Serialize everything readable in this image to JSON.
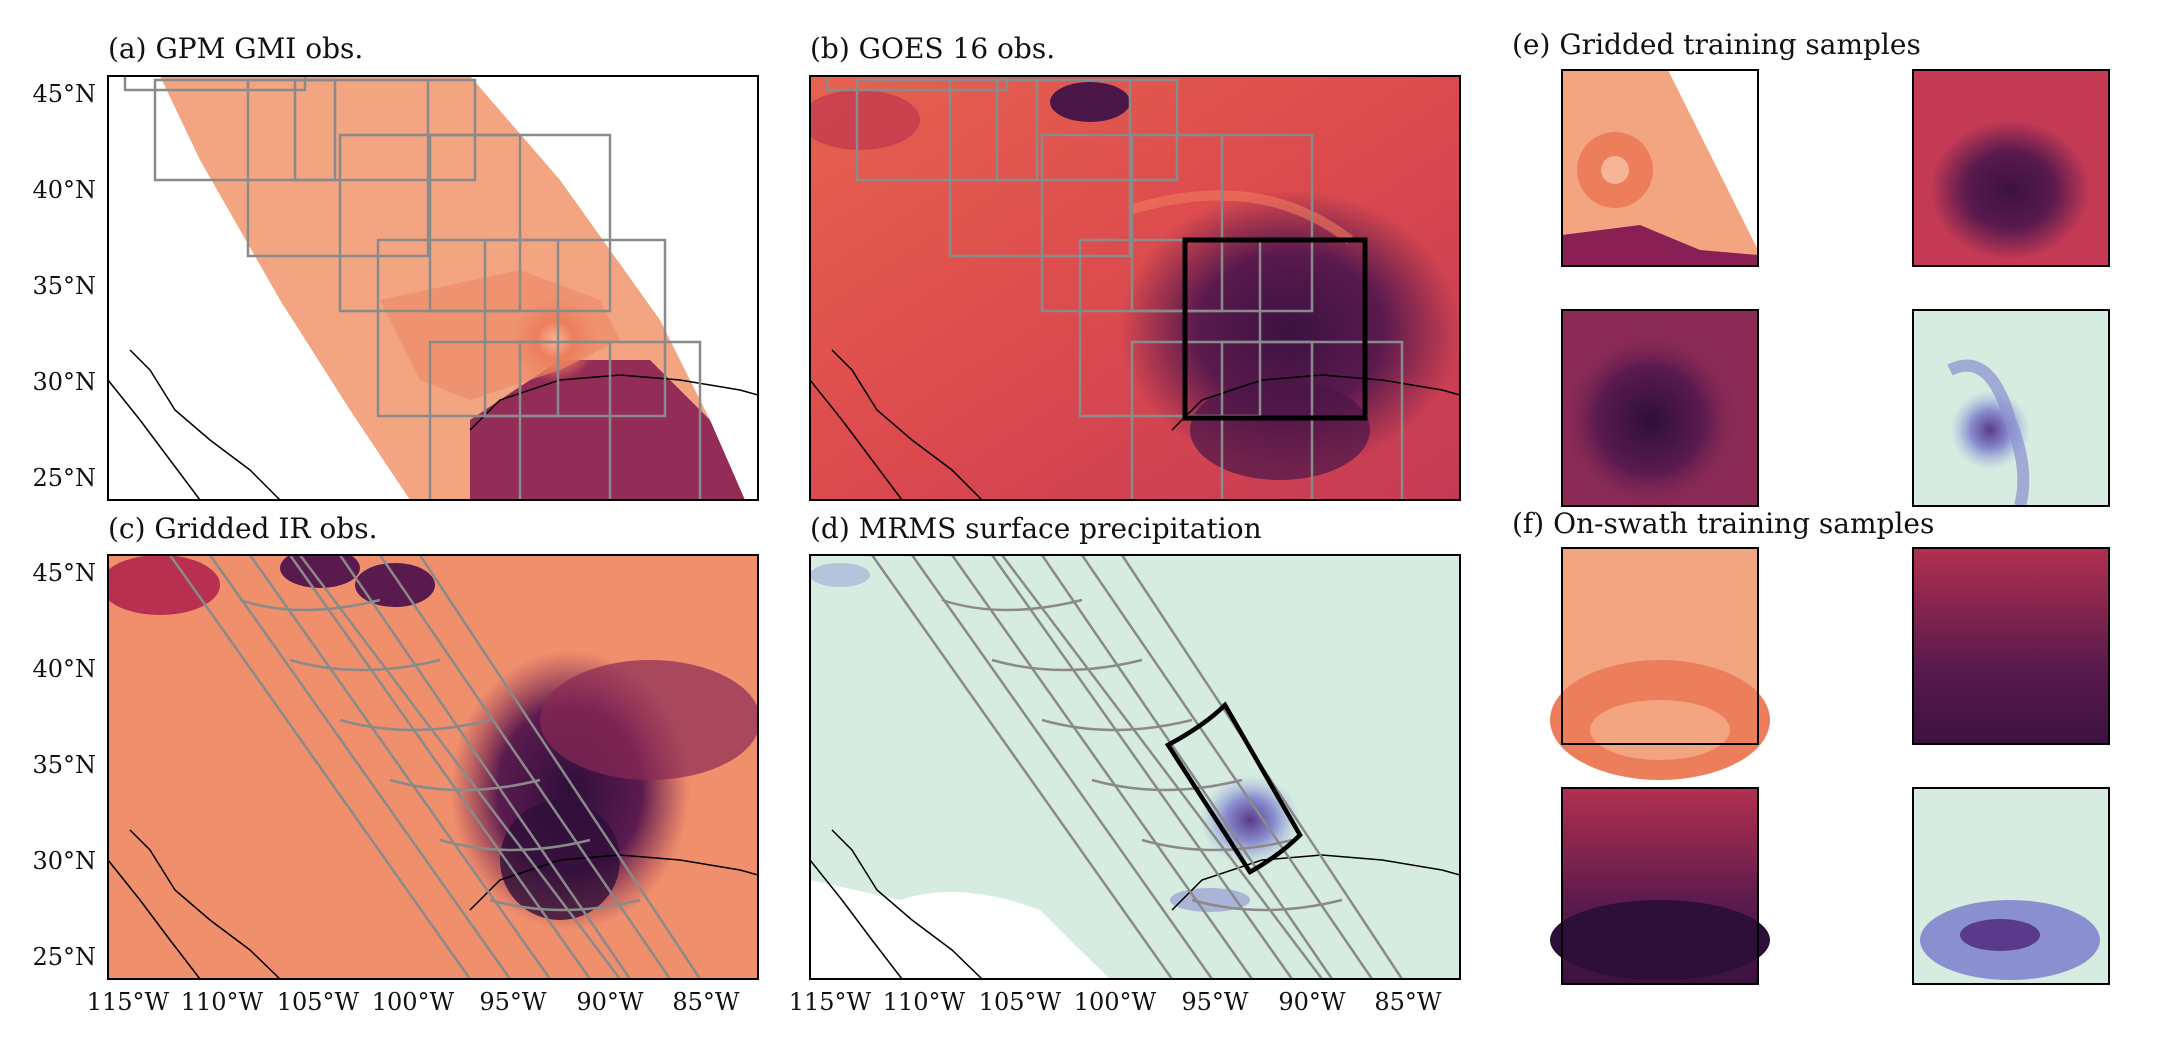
{
  "panels": {
    "a": {
      "title": "(a) GPM GMI obs."
    },
    "b": {
      "title": "(b) GOES 16 obs."
    },
    "c": {
      "title": "(c) Gridded IR obs."
    },
    "d": {
      "title": "(d) MRMS surface precipitation"
    },
    "e": {
      "title": "(e) Gridded training samples"
    },
    "f": {
      "title": "(f) On-swath training samples"
    }
  },
  "lat_ticks": [
    "45°N",
    "40°N",
    "35°N",
    "30°N",
    "25°N"
  ],
  "lon_ticks": [
    "115°W",
    "110°W",
    "105°W",
    "100°W",
    "95°W",
    "90°W",
    "85°W"
  ],
  "colors": {
    "gmi_light": "#f3a582",
    "gmi_dark": "#8a1f53",
    "goes_base": "#dc4a4e",
    "goes_dark": "#4a1648",
    "ir_base": "#f08f6c",
    "ir_dark": "#3b1240",
    "mrms_bg": "#d6ece0",
    "precip": "#7a7fc4",
    "box_gray": "#8a8a8a",
    "box_black": "#000000"
  }
}
